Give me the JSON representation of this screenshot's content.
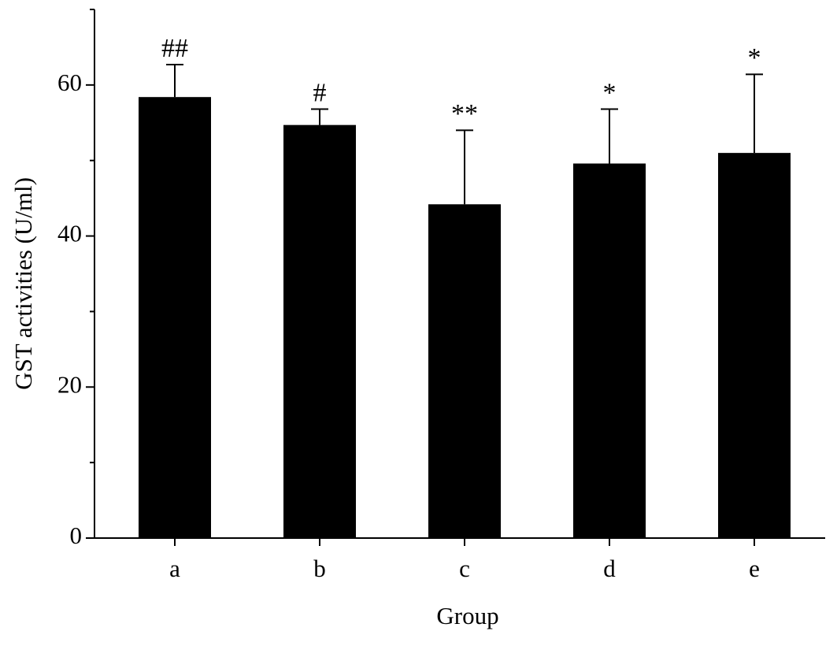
{
  "chart_data": {
    "type": "bar",
    "x_label": "Group",
    "y_label": "GST activities (U/ml)",
    "categories": [
      "a",
      "b",
      "c",
      "d",
      "e"
    ],
    "values": [
      58.4,
      54.7,
      44.2,
      49.6,
      51.0
    ],
    "errors": [
      4.3,
      2.1,
      9.8,
      7.2,
      10.4
    ],
    "annotations": [
      "##",
      "#",
      "**",
      "*",
      "*"
    ],
    "color": "#000000",
    "ylim": [
      0,
      70
    ],
    "yticks": [
      0,
      20,
      40,
      60
    ],
    "yminor_ticks": [
      10,
      30,
      50,
      70
    ]
  }
}
